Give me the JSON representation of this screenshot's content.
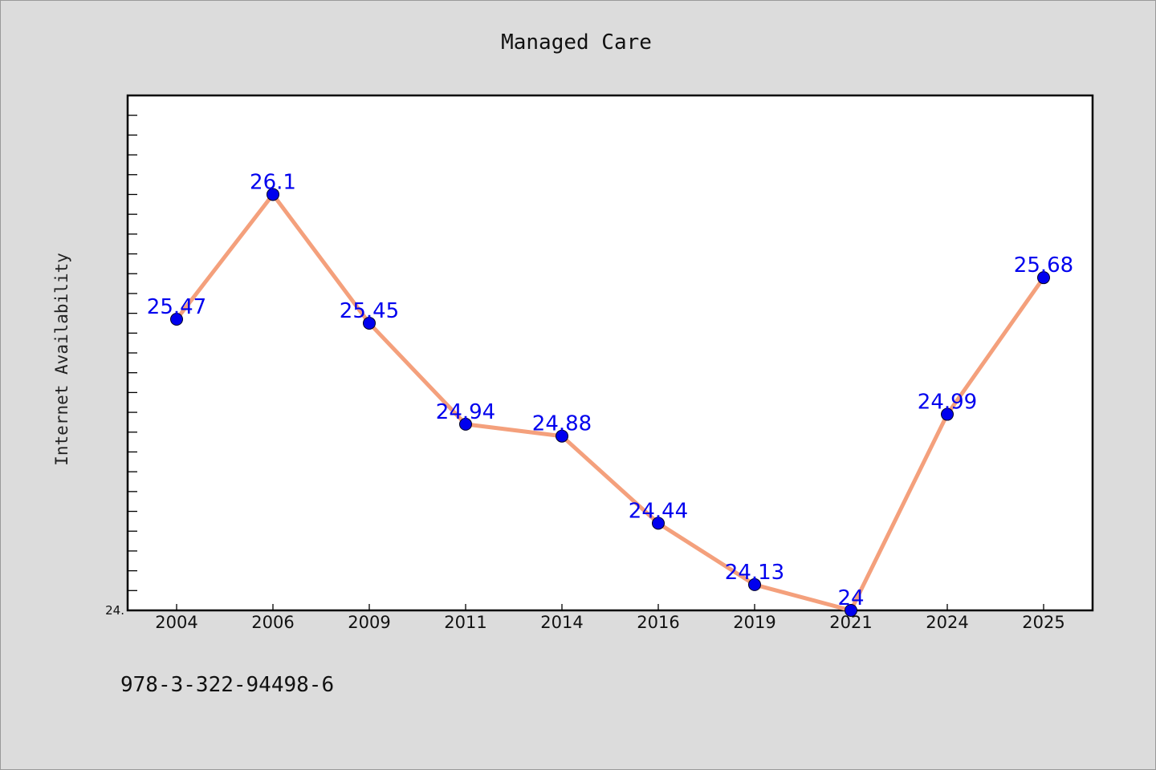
{
  "chart_data": {
    "type": "line",
    "title": "Managed Care",
    "xlabel": "",
    "ylabel": "Internet Availability",
    "categories": [
      "2004",
      "2006",
      "2009",
      "2011",
      "2014",
      "2016",
      "2019",
      "2021",
      "2024",
      "2025"
    ],
    "values": [
      25.47,
      26.1,
      25.45,
      24.94,
      24.88,
      24.44,
      24.13,
      24,
      24.99,
      25.68
    ],
    "data_labels": [
      "25.47",
      "26.1",
      "25.45",
      "24.94",
      "24.88",
      "24.44",
      "24.13",
      "24",
      "24.99",
      "25.68"
    ],
    "y_tick_label": "24.",
    "ylim": [
      24,
      26.6
    ],
    "grid": false,
    "legend": "none",
    "line_color": "#f4a07c",
    "marker_color": "#0000ee",
    "label_color": "#0000ee"
  },
  "footer": {
    "isbn": "978-3-322-94498-6"
  }
}
